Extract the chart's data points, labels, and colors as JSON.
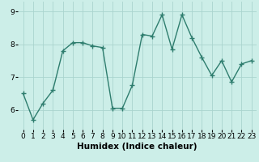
{
  "x": [
    0,
    1,
    2,
    3,
    4,
    5,
    6,
    7,
    8,
    9,
    10,
    11,
    12,
    13,
    14,
    15,
    16,
    17,
    18,
    19,
    20,
    21,
    22,
    23
  ],
  "y": [
    6.5,
    5.7,
    6.2,
    6.6,
    7.8,
    8.05,
    8.05,
    7.95,
    7.9,
    6.05,
    6.05,
    6.75,
    8.3,
    8.25,
    8.9,
    7.85,
    8.9,
    8.2,
    7.6,
    7.05,
    7.5,
    6.85,
    7.4,
    7.5
  ],
  "line_color": "#2e7d6e",
  "marker": "+",
  "bg_color": "#cceee8",
  "grid_color": "#aad4ce",
  "xlabel": "Humidex (Indice chaleur)",
  "xlim": [
    -0.5,
    23.5
  ],
  "ylim": [
    5.4,
    9.3
  ],
  "yticks": [
    6,
    7,
    8,
    9
  ],
  "xticks": [
    0,
    1,
    2,
    3,
    4,
    5,
    6,
    7,
    8,
    9,
    10,
    11,
    12,
    13,
    14,
    15,
    16,
    17,
    18,
    19,
    20,
    21,
    22,
    23
  ],
  "xlabel_fontsize": 7.5,
  "tick_fontsize": 6.5,
  "markersize": 4,
  "linewidth": 1.0
}
